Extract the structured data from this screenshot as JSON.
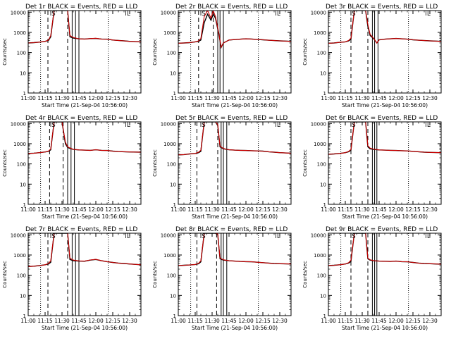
{
  "chart_data": {
    "type": "line",
    "shared": {
      "x_ticks": [
        "11:00",
        "11:15",
        "11:30",
        "11:45",
        "12:00",
        "12:15",
        "12:30"
      ],
      "xlim": [
        0,
        100
      ],
      "x_tick_values": [
        0,
        15,
        30,
        45,
        60,
        75,
        90
      ],
      "y_ticks": [
        "1",
        "10",
        "100",
        "1000",
        "10000"
      ],
      "y_tick_values": [
        1,
        10,
        100,
        1000,
        10000
      ],
      "ylim": [
        1,
        12000
      ],
      "yscale": "log",
      "ylabel": "Counts/sec",
      "xlabel": "Start Time (21-Sep-04 10:56:00)",
      "event_markers": [
        {
          "label": "S",
          "x": 22.5
        },
        {
          "label": "L",
          "x": 89
        }
      ],
      "dotted_lines_x": [
        11,
        71
      ],
      "series_colors": {
        "events": "#000000",
        "lld": "#cc0000"
      }
    },
    "panels": [
      {
        "title": "Det 1r BLACK = Events, RED = LLD",
        "dashed_lines_x": [
          17.5,
          35
        ],
        "solid_lines_x": [
          39,
          42,
          45
        ],
        "x": [
          0,
          5,
          10,
          15,
          18,
          20,
          23,
          26,
          30,
          33,
          35,
          37,
          40,
          45,
          50,
          55,
          60,
          65,
          70,
          75,
          80,
          85,
          90,
          100
        ],
        "events": [
          300,
          310,
          330,
          360,
          400,
          600,
          12000,
          12000,
          12000,
          12000,
          12000,
          600,
          520,
          480,
          470,
          490,
          500,
          470,
          460,
          420,
          400,
          380,
          360,
          340
        ],
        "lld": [
          300,
          310,
          330,
          360,
          420,
          700,
          12000,
          12000,
          12000,
          12000,
          12000,
          700,
          560,
          480,
          470,
          490,
          510,
          470,
          460,
          420,
          400,
          380,
          360,
          340
        ]
      },
      {
        "title": "Det 2r BLACK = Events, RED = LLD",
        "dashed_lines_x": [
          18,
          31
        ],
        "solid_lines_x": [
          35,
          37,
          40
        ],
        "x": [
          0,
          5,
          10,
          15,
          18,
          20,
          23,
          26,
          29,
          31,
          33,
          36,
          38,
          40,
          45,
          50,
          55,
          60,
          65,
          70,
          75,
          80,
          90,
          100
        ],
        "events": [
          290,
          300,
          310,
          340,
          360,
          420,
          3000,
          8000,
          4000,
          8000,
          5000,
          800,
          180,
          300,
          420,
          440,
          460,
          480,
          470,
          450,
          430,
          410,
          380,
          360
        ],
        "lld": [
          290,
          300,
          310,
          340,
          380,
          500,
          6000,
          12000,
          5000,
          12000,
          6000,
          900,
          180,
          300,
          420,
          440,
          460,
          480,
          470,
          450,
          430,
          410,
          380,
          360
        ]
      },
      {
        "title": "Det 3r BLACK = Events, RED = LLD",
        "dashed_lines_x": [
          20,
          35
        ],
        "solid_lines_x": [
          39,
          41,
          44
        ],
        "x": [
          0,
          5,
          10,
          15,
          18,
          20,
          23,
          26,
          30,
          33,
          35,
          37,
          40,
          43,
          45,
          50,
          55,
          60,
          65,
          70,
          75,
          80,
          90,
          100
        ],
        "events": [
          290,
          300,
          320,
          340,
          380,
          460,
          12000,
          12000,
          12000,
          12000,
          2000,
          700,
          500,
          300,
          430,
          460,
          480,
          500,
          480,
          460,
          430,
          410,
          380,
          360
        ],
        "lld": [
          290,
          300,
          320,
          340,
          400,
          520,
          12000,
          12000,
          12000,
          12000,
          2500,
          800,
          520,
          300,
          430,
          460,
          480,
          500,
          480,
          460,
          430,
          410,
          380,
          360
        ]
      },
      {
        "title": "Det 4r BLACK = Events, RED = LLD",
        "dashed_lines_x": [
          19,
          31
        ],
        "solid_lines_x": [
          35,
          38,
          41
        ],
        "x": [
          0,
          5,
          10,
          15,
          18,
          20,
          23,
          26,
          30,
          33,
          35,
          38,
          40,
          45,
          50,
          55,
          60,
          65,
          70,
          75,
          80,
          85,
          90,
          100
        ],
        "events": [
          330,
          340,
          360,
          390,
          420,
          500,
          12000,
          12000,
          12000,
          1000,
          650,
          560,
          520,
          490,
          480,
          470,
          500,
          470,
          460,
          430,
          410,
          400,
          390,
          380
        ],
        "lld": [
          330,
          340,
          360,
          390,
          430,
          550,
          12000,
          12000,
          12000,
          1200,
          700,
          580,
          530,
          490,
          480,
          470,
          500,
          470,
          460,
          430,
          410,
          400,
          390,
          380
        ]
      },
      {
        "title": "Det 5r BLACK = Events, RED = LLD",
        "dashed_lines_x": [
          16.5,
          35
        ],
        "solid_lines_x": [
          38,
          40,
          43
        ],
        "x": [
          0,
          5,
          10,
          15,
          18,
          20,
          23,
          26,
          30,
          33,
          35,
          37,
          40,
          45,
          50,
          55,
          60,
          65,
          70,
          75,
          80,
          85,
          90,
          100
        ],
        "events": [
          280,
          290,
          310,
          330,
          360,
          420,
          12000,
          12000,
          12000,
          12000,
          8000,
          700,
          560,
          500,
          480,
          470,
          460,
          450,
          440,
          430,
          400,
          380,
          360,
          340
        ],
        "lld": [
          280,
          290,
          310,
          330,
          380,
          480,
          12000,
          12000,
          12000,
          12000,
          9000,
          750,
          580,
          500,
          480,
          470,
          460,
          450,
          440,
          430,
          400,
          380,
          360,
          340
        ]
      },
      {
        "title": "Det 6r BLACK = Events, RED = LLD",
        "dashed_lines_x": [
          20,
          35
        ],
        "solid_lines_x": [
          39,
          41,
          43
        ],
        "x": [
          0,
          5,
          10,
          15,
          18,
          20,
          23,
          26,
          30,
          33,
          35,
          37,
          40,
          45,
          50,
          55,
          60,
          65,
          70,
          75,
          80,
          85,
          90,
          100
        ],
        "events": [
          300,
          310,
          330,
          360,
          400,
          480,
          12000,
          12000,
          12000,
          12000,
          700,
          560,
          520,
          490,
          480,
          470,
          460,
          450,
          440,
          420,
          400,
          380,
          370,
          360
        ],
        "lld": [
          300,
          310,
          330,
          360,
          420,
          520,
          12000,
          12000,
          12000,
          12000,
          800,
          600,
          540,
          490,
          480,
          470,
          460,
          450,
          440,
          420,
          400,
          380,
          370,
          360
        ]
      },
      {
        "title": "Det 7r BLACK = Events, RED = LLD",
        "dashed_lines_x": [
          17.5,
          35
        ],
        "solid_lines_x": [
          39,
          42,
          45
        ],
        "x": [
          0,
          5,
          10,
          15,
          18,
          20,
          23,
          26,
          30,
          33,
          35,
          37,
          40,
          45,
          50,
          55,
          60,
          65,
          70,
          75,
          80,
          85,
          90,
          100
        ],
        "events": [
          270,
          280,
          300,
          330,
          360,
          440,
          12000,
          12000,
          12000,
          12000,
          12000,
          600,
          520,
          500,
          490,
          560,
          600,
          520,
          470,
          430,
          400,
          380,
          360,
          330
        ],
        "lld": [
          270,
          280,
          300,
          330,
          380,
          520,
          12000,
          12000,
          12000,
          12000,
          12000,
          700,
          560,
          510,
          500,
          570,
          610,
          530,
          470,
          430,
          400,
          380,
          360,
          330
        ]
      },
      {
        "title": "Det 8r BLACK = Events, RED = LLD",
        "dashed_lines_x": [
          16.5,
          34
        ],
        "solid_lines_x": [
          38,
          40,
          43
        ],
        "x": [
          0,
          5,
          10,
          15,
          18,
          20,
          23,
          26,
          30,
          33,
          35,
          37,
          40,
          45,
          50,
          55,
          60,
          65,
          70,
          75,
          80,
          85,
          90,
          100
        ],
        "events": [
          300,
          310,
          320,
          340,
          370,
          460,
          12000,
          12000,
          12000,
          12000,
          10000,
          650,
          560,
          520,
          500,
          480,
          470,
          460,
          440,
          420,
          400,
          380,
          370,
          360
        ],
        "lld": [
          300,
          310,
          320,
          340,
          390,
          520,
          12000,
          12000,
          12000,
          12000,
          11000,
          700,
          580,
          520,
          500,
          480,
          470,
          460,
          440,
          420,
          400,
          380,
          370,
          360
        ]
      },
      {
        "title": "Det 9r BLACK = Events, RED = LLD",
        "dashed_lines_x": [
          20,
          35
        ],
        "solid_lines_x": [
          39,
          41,
          43
        ],
        "x": [
          0,
          5,
          10,
          15,
          18,
          20,
          23,
          26,
          30,
          33,
          35,
          37,
          40,
          45,
          50,
          55,
          60,
          65,
          70,
          75,
          80,
          85,
          90,
          100
        ],
        "events": [
          300,
          310,
          330,
          360,
          400,
          480,
          12000,
          12000,
          12000,
          12000,
          650,
          560,
          520,
          500,
          490,
          480,
          500,
          470,
          460,
          430,
          400,
          380,
          370,
          350
        ],
        "lld": [
          300,
          310,
          330,
          360,
          420,
          560,
          12000,
          12000,
          12000,
          12000,
          700,
          580,
          530,
          500,
          490,
          480,
          500,
          470,
          460,
          430,
          400,
          380,
          370,
          350
        ]
      }
    ]
  }
}
